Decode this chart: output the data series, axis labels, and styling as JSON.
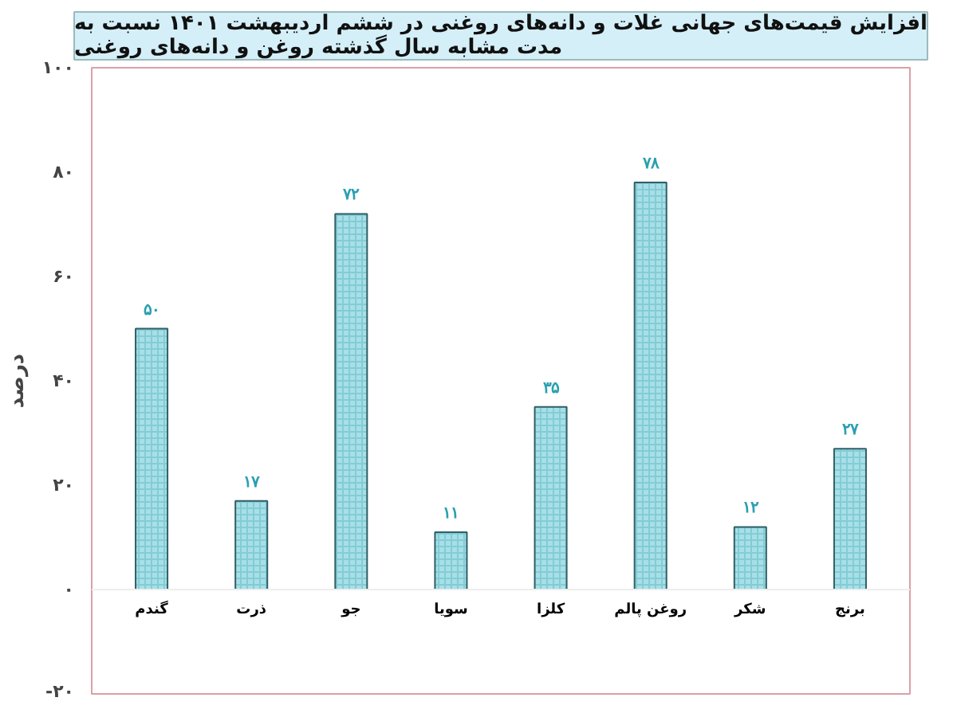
{
  "chart_data": {
    "type": "bar",
    "title": "افزایش قیمت‌های جهانی غلات و دانه‌های روغنی در ششم اردیبهشت ۱۴۰۱ نسبت به\nمدت مشابه سال گذشته روغن و دانه‌های روغنی",
    "ylabel": "درصد",
    "categories": [
      "گندم",
      "ذرت",
      "جو",
      "سویا",
      "کلزا",
      "روغن پالم",
      "شکر",
      "برنج"
    ],
    "values": [
      50,
      17,
      72,
      11,
      35,
      78,
      12,
      27
    ],
    "value_labels": [
      "۵۰",
      "۱۷",
      "۷۲",
      "۱۱",
      "۳۵",
      "۷۸",
      "۱۲",
      "۲۷"
    ],
    "color": "#a8dfe6",
    "ylim": [
      -20,
      100
    ],
    "yticks": [
      {
        "value": -20,
        "label": "-۲۰"
      },
      {
        "value": 0,
        "label": "۰"
      },
      {
        "value": 20,
        "label": "۲۰"
      },
      {
        "value": 40,
        "label": "۴۰"
      },
      {
        "value": 60,
        "label": "۶۰"
      },
      {
        "value": 80,
        "label": "۸۰"
      },
      {
        "value": 100,
        "label": "۱۰۰"
      }
    ],
    "grid": false
  }
}
